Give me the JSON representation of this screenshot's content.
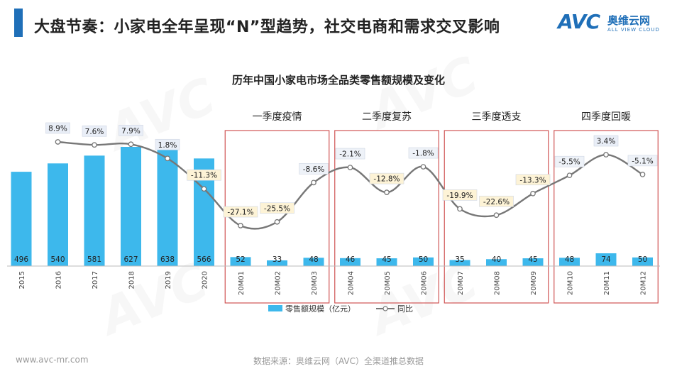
{
  "page": {
    "title": "大盘节奏：小家电全年呈现“N”型趋势，社交电商和需求交叉影响",
    "footer_url": "www.avc-mr.com",
    "footer_source": "数据来源：奥维云网（AVC）全渠道推总数据",
    "accent_color": "#1f6fb8"
  },
  "logo": {
    "main": "AVC",
    "cn": "奥维云网",
    "en": "ALL VIEW CLOUD"
  },
  "chart_data": {
    "type": "bar",
    "title": "历年中国小家电市场全品类零售额规模及变化",
    "categories": [
      "2015",
      "2016",
      "2017",
      "2018",
      "2019",
      "2020",
      "20M01",
      "20M02",
      "20M03",
      "20M04",
      "20M05",
      "20M06",
      "20M07",
      "20M08",
      "20M09",
      "20M10",
      "20M11",
      "20M12"
    ],
    "series": [
      {
        "name": "零售额规模（亿元）",
        "type": "bar",
        "color": "#3db8ec",
        "values": [
          496,
          540,
          581,
          627,
          638,
          566,
          52,
          33,
          48,
          46,
          45,
          50,
          35,
          40,
          45,
          48,
          74,
          50
        ]
      },
      {
        "name": "同比",
        "type": "line",
        "color": "#777777",
        "values": [
          null,
          8.9,
          7.6,
          7.9,
          1.8,
          -11.3,
          -27.1,
          -25.5,
          -8.6,
          -2.1,
          -12.8,
          -1.8,
          -19.9,
          -22.6,
          -13.3,
          -5.5,
          3.4,
          -5.1
        ],
        "labels": [
          "",
          "8.9%",
          "7.6%",
          "7.9%",
          "1.8%",
          "-11.3%",
          "-27.1%",
          "-25.5%",
          "-8.6%",
          "-2.1%",
          "-12.8%",
          "-1.8%",
          "-19.9%",
          "-22.6%",
          "-13.3%",
          "-5.5%",
          "3.4%",
          "-5.1%"
        ]
      }
    ],
    "groups": [
      {
        "label": "一季度疫情",
        "categories": [
          "20M01",
          "20M02",
          "20M03"
        ]
      },
      {
        "label": "二季度复苏",
        "categories": [
          "20M04",
          "20M05",
          "20M06"
        ]
      },
      {
        "label": "三季度透支",
        "categories": [
          "20M07",
          "20M08",
          "20M09"
        ]
      },
      {
        "label": "四季度回暖",
        "categories": [
          "20M10",
          "20M11",
          "20M12"
        ]
      }
    ],
    "legend": {
      "position": "bottom",
      "bar_label": "零售额规模（亿元）",
      "line_label": "同比"
    },
    "grid": false
  }
}
